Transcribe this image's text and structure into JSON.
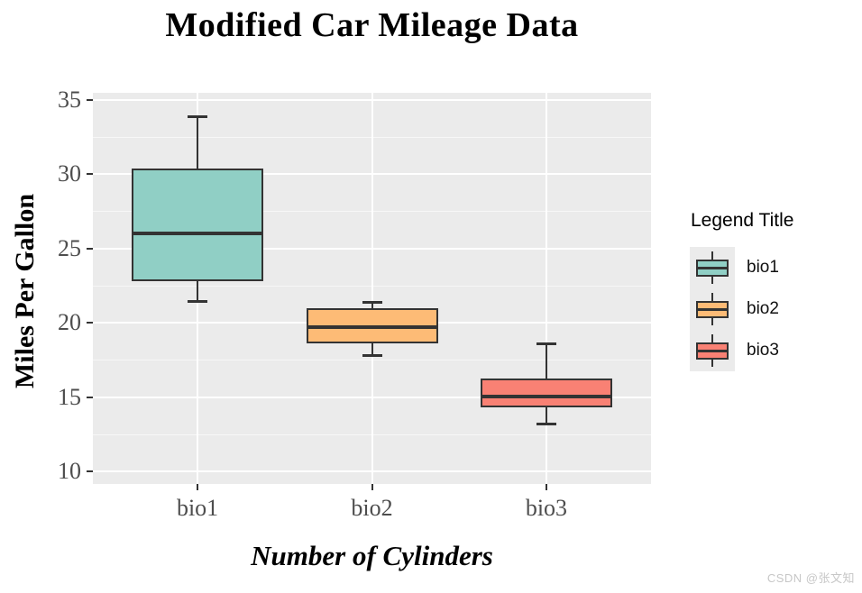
{
  "title": "Modified Car Mileage Data",
  "axes": {
    "x": {
      "title": "Number of Cylinders"
    },
    "y": {
      "title": "Miles Per Gallon"
    }
  },
  "legend": {
    "title": "Legend Title",
    "position": "right",
    "items": [
      {
        "label": "bio1",
        "color": "#90CFC5"
      },
      {
        "label": "bio2",
        "color": "#FDBB76"
      },
      {
        "label": "bio3",
        "color": "#F98174"
      }
    ]
  },
  "watermark": "CSDN @张文知",
  "style_colors": {
    "panel_background": "#EBEBEB",
    "grid_major": "#FFFFFF",
    "box_outline": "#333333",
    "axis_text": "#4D4D4D"
  },
  "chart_data": {
    "type": "boxplot",
    "title": "Modified Car Mileage Data",
    "xlabel": "Number of Cylinders",
    "ylabel": "Miles Per Gallon",
    "categories": [
      "bio1",
      "bio2",
      "bio3"
    ],
    "y_ticks": [
      10,
      15,
      20,
      25,
      30,
      35
    ],
    "y_minor_ticks": [
      12.5,
      17.5,
      22.5,
      27.5,
      32.5
    ],
    "ylim": [
      9.18,
      35.47
    ],
    "grid": true,
    "legend_position": "right",
    "series": [
      {
        "name": "bio1",
        "color": "#90CFC5",
        "whisker_low": 21.4,
        "q1": 22.8,
        "median": 26.0,
        "q3": 30.4,
        "whisker_high": 33.9
      },
      {
        "name": "bio2",
        "color": "#FDBB76",
        "whisker_low": 17.8,
        "q1": 18.65,
        "median": 19.7,
        "q3": 21.0,
        "whisker_high": 21.4
      },
      {
        "name": "bio3",
        "color": "#F98174",
        "whisker_low": 13.2,
        "q1": 14.35,
        "median": 15.05,
        "q3": 16.25,
        "whisker_high": 18.65
      }
    ]
  }
}
